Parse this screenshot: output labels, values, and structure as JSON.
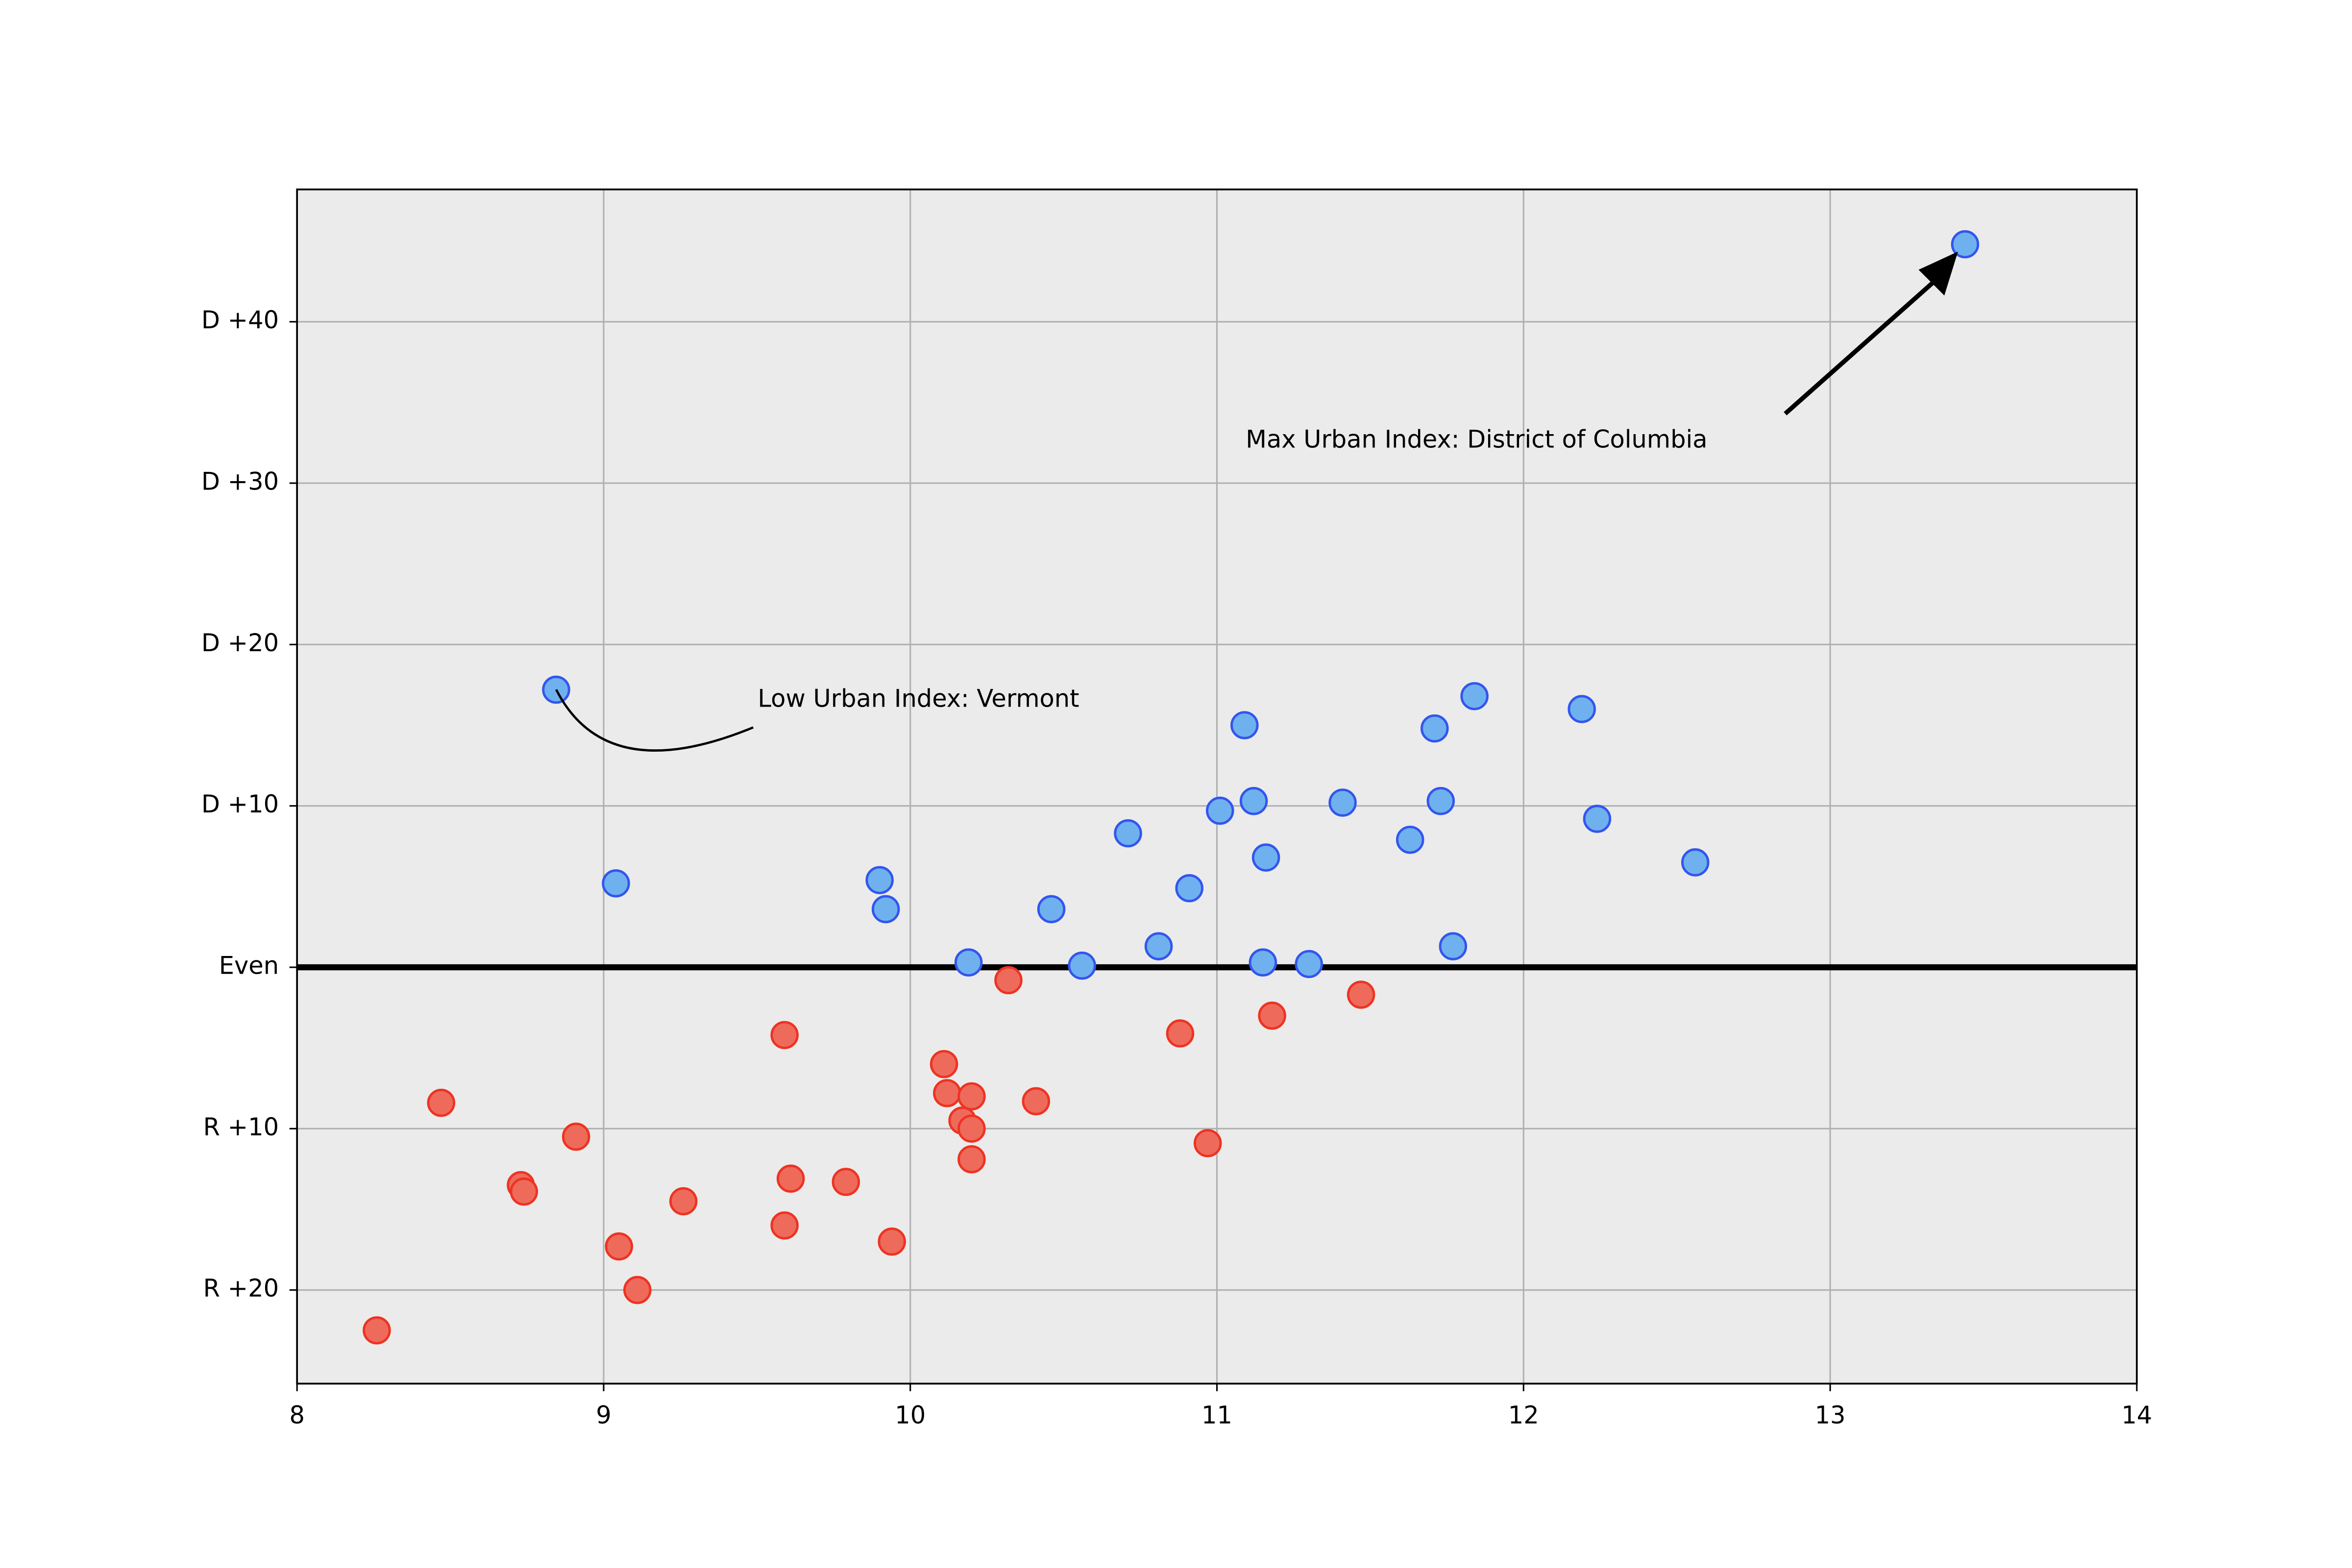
{
  "chart_data": {
    "type": "scatter",
    "xlim": [
      8,
      14
    ],
    "xticks": [
      8,
      9,
      10,
      11,
      12,
      13,
      14
    ],
    "ylim": [
      -25.8,
      48.2
    ],
    "yticks": [
      {
        "value": 40,
        "label": "D +40"
      },
      {
        "value": 30,
        "label": "D +30"
      },
      {
        "value": 20,
        "label": "D +20"
      },
      {
        "value": 10,
        "label": "D +10"
      },
      {
        "value": 0,
        "label": "Even"
      },
      {
        "value": -10,
        "label": "R +10"
      },
      {
        "value": -20,
        "label": "R +20"
      }
    ],
    "grid": true,
    "hline": 0,
    "series": [
      {
        "color": "#6fb1ee",
        "edgecolor": "#3355ee",
        "x": [
          8.845,
          9.04,
          9.9,
          9.92,
          10.19,
          10.46,
          10.56,
          10.71,
          10.81,
          10.91,
          11.01,
          11.09,
          11.12,
          11.16,
          11.15,
          11.3,
          11.41,
          11.63,
          11.71,
          11.73,
          11.77,
          11.84,
          12.19,
          12.24,
          12.56,
          13.44
        ],
        "values": [
          17.2,
          5.2,
          5.4,
          3.6,
          0.3,
          3.6,
          0.1,
          8.3,
          1.3,
          4.9,
          9.7,
          15.0,
          10.3,
          6.8,
          0.3,
          0.2,
          10.2,
          7.9,
          14.8,
          10.3,
          1.3,
          16.8,
          16.0,
          9.2,
          6.5,
          44.8
        ]
      },
      {
        "color": "#ee6b5c",
        "edgecolor": "#ee3322",
        "x": [
          8.26,
          8.47,
          8.73,
          8.74,
          8.91,
          9.05,
          9.11,
          9.26,
          9.59,
          9.61,
          9.59,
          9.79,
          9.94,
          10.11,
          10.12,
          10.2,
          10.17,
          10.2,
          10.2,
          10.32,
          10.41,
          10.88,
          10.97,
          11.18,
          11.47
        ],
        "values": [
          -22.5,
          -8.4,
          -13.5,
          -13.9,
          -10.5,
          -17.3,
          -20.0,
          -14.5,
          -4.2,
          -13.1,
          -16.0,
          -13.3,
          -17.0,
          -6.0,
          -7.8,
          -8.0,
          -9.5,
          -10.0,
          -11.9,
          -0.8,
          -8.3,
          -4.1,
          -10.9,
          -3.0,
          -1.7
        ]
      }
    ],
    "annotations": [
      {
        "text": "Max Urban Index: District of Columbia"
      },
      {
        "text": "Low Urban Index: Vermont"
      }
    ]
  }
}
